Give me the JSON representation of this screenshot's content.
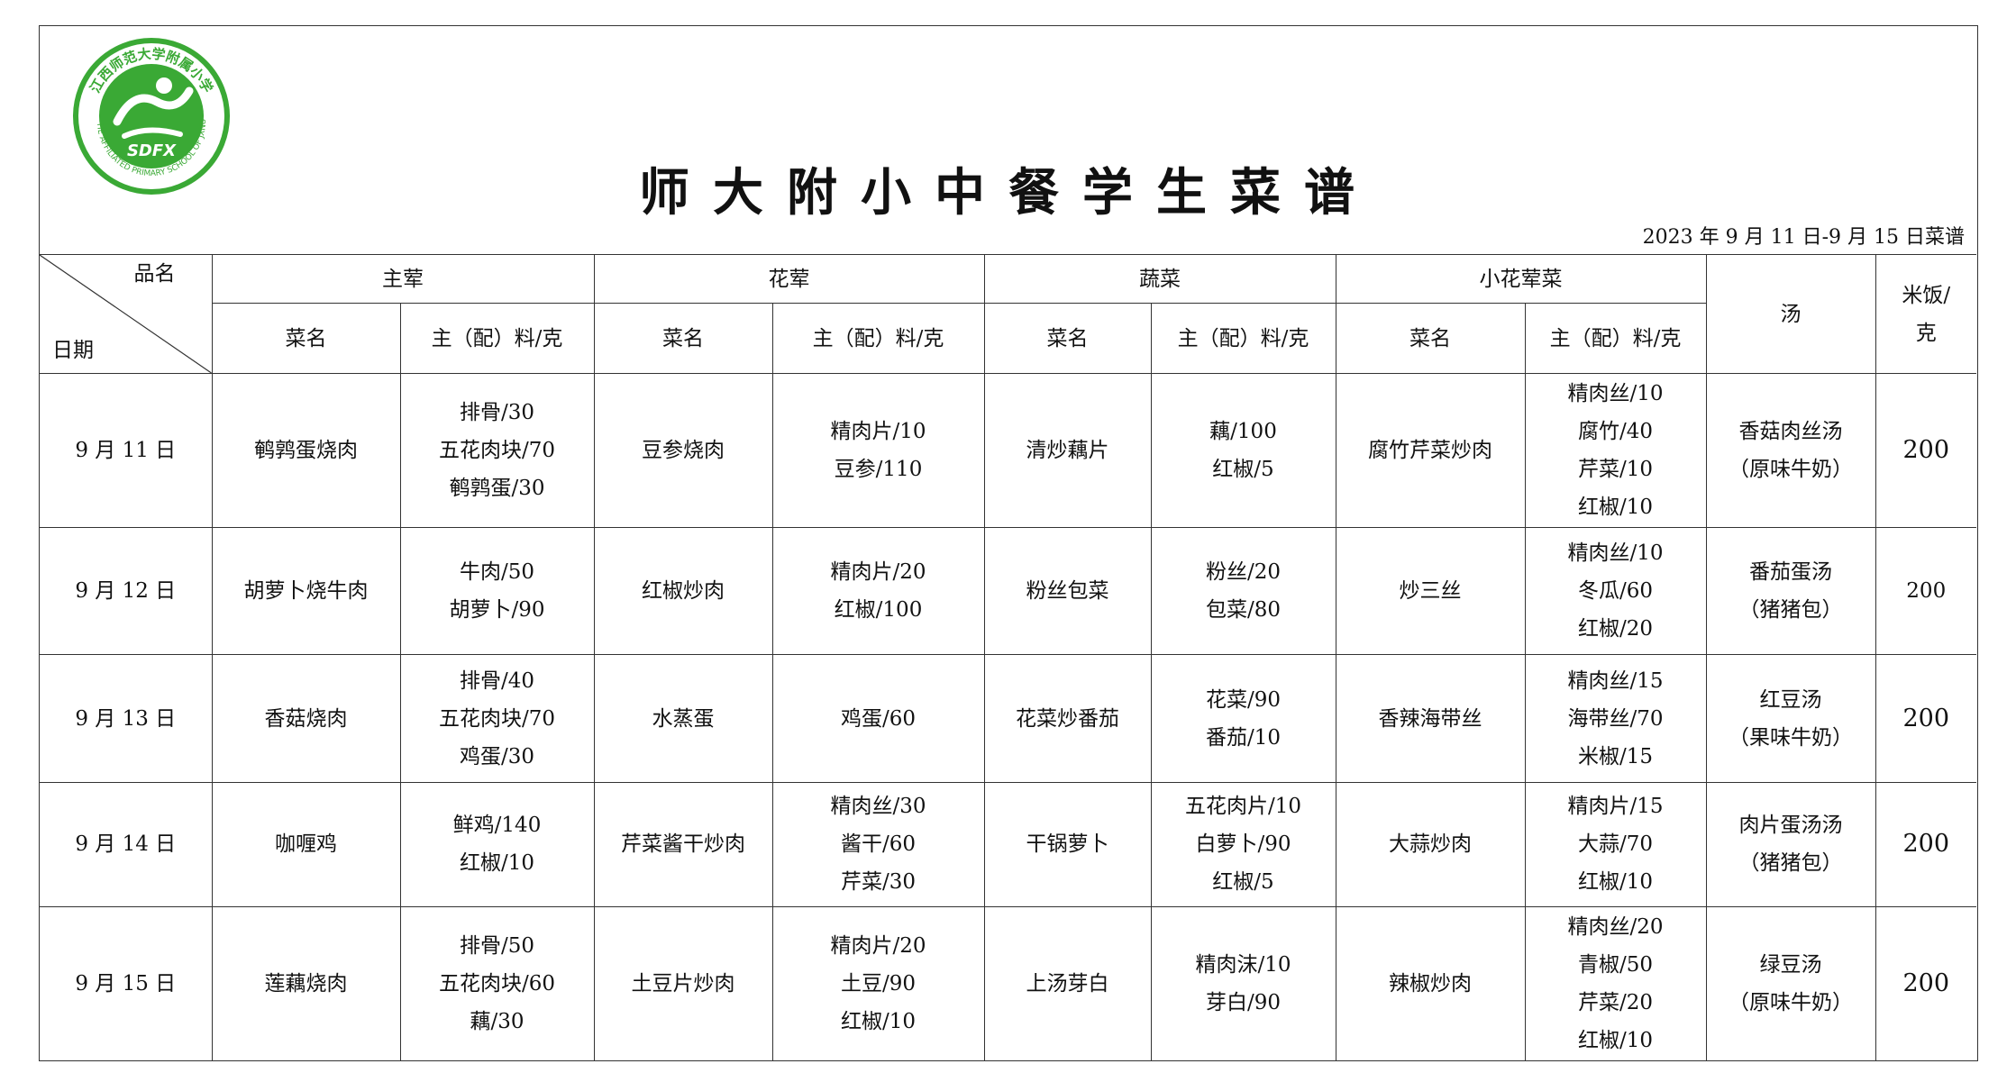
{
  "header": {
    "school_name": "江西师范大学附属小学",
    "school_name_en": "THE AFFILIATED PRIMARY SCHOOL OF JXNU",
    "logo_text": "SDFX",
    "title": "师大附小中餐学生菜谱",
    "date_range": "2023 年 9 月 11 日-9 月 15 日菜谱"
  },
  "colors": {
    "logo_green": "#3aa935",
    "border": "#333333"
  },
  "table": {
    "corner_top": "品名",
    "corner_bottom": "日期",
    "groups": [
      "主荤",
      "花荤",
      "蔬菜",
      "小花荤菜"
    ],
    "soup_header": "汤",
    "rice_header": "米饭/克",
    "sub_dish": "菜名",
    "sub_ingredients": "主（配）料/克",
    "rows": [
      {
        "date": "9 月 11 日",
        "main": {
          "dish": "鹌鹑蛋烧肉",
          "ing": [
            "排骨/30",
            "五花肉块/70",
            "鹌鹑蛋/30"
          ]
        },
        "meat": {
          "dish": "豆参烧肉",
          "ing": [
            "精肉片/10",
            "豆参/110"
          ]
        },
        "veg": {
          "dish": "清炒藕片",
          "ing": [
            "藕/100",
            "红椒/5"
          ]
        },
        "small": {
          "dish": "腐竹芹菜炒肉",
          "ing": [
            "精肉丝/10",
            "腐竹/40",
            "芹菜/10",
            "红椒/10"
          ]
        },
        "soup": [
          "香菇肉丝汤",
          "（原味牛奶）"
        ],
        "rice": "200"
      },
      {
        "date": "9 月 12 日",
        "main": {
          "dish": "胡萝卜烧牛肉",
          "ing": [
            "牛肉/50",
            "胡萝卜/90"
          ]
        },
        "meat": {
          "dish": "红椒炒肉",
          "ing": [
            "精肉片/20",
            "红椒/100"
          ]
        },
        "veg": {
          "dish": "粉丝包菜",
          "ing": [
            "粉丝/20",
            "包菜/80"
          ]
        },
        "small": {
          "dish": "炒三丝",
          "ing": [
            "精肉丝/10",
            "冬瓜/60",
            "红椒/20"
          ]
        },
        "soup": [
          "番茄蛋汤",
          "（猪猪包）"
        ],
        "rice": "200"
      },
      {
        "date": "9 月 13 日",
        "main": {
          "dish": "香菇烧肉",
          "ing": [
            "排骨/40",
            "五花肉块/70",
            "鸡蛋/30"
          ]
        },
        "meat": {
          "dish": "水蒸蛋",
          "ing": [
            "鸡蛋/60"
          ]
        },
        "veg": {
          "dish": "花菜炒番茄",
          "ing": [
            "花菜/90",
            "番茄/10"
          ]
        },
        "small": {
          "dish": "香辣海带丝",
          "ing": [
            "精肉丝/15",
            "海带丝/70",
            "米椒/15"
          ]
        },
        "soup": [
          "红豆汤",
          "（果味牛奶）"
        ],
        "rice": "200"
      },
      {
        "date": "9 月 14 日",
        "main": {
          "dish": "咖喱鸡",
          "ing": [
            "鲜鸡/140",
            "红椒/10"
          ]
        },
        "meat": {
          "dish": "芹菜酱干炒肉",
          "ing": [
            "精肉丝/30",
            "酱干/60",
            "芹菜/30"
          ]
        },
        "veg": {
          "dish": "干锅萝卜",
          "ing": [
            "五花肉片/10",
            "白萝卜/90",
            "红椒/5"
          ]
        },
        "small": {
          "dish": "大蒜炒肉",
          "ing": [
            "精肉片/15",
            "大蒜/70",
            "红椒/10"
          ]
        },
        "soup": [
          "肉片蛋汤汤",
          "（猪猪包）"
        ],
        "rice": "200"
      },
      {
        "date": "9 月 15 日",
        "main": {
          "dish": "莲藕烧肉",
          "ing": [
            "排骨/50",
            "五花肉块/60",
            "藕/30"
          ]
        },
        "meat": {
          "dish": "土豆片炒肉",
          "ing": [
            "精肉片/20",
            "土豆/90",
            "红椒/10"
          ]
        },
        "veg": {
          "dish": "上汤芽白",
          "ing": [
            "精肉沫/10",
            "芽白/90"
          ]
        },
        "small": {
          "dish": "辣椒炒肉",
          "ing": [
            "精肉丝/20",
            "青椒/50",
            "芹菜/20",
            "红椒/10"
          ]
        },
        "soup": [
          "绿豆汤",
          "（原味牛奶）"
        ],
        "rice": "200"
      }
    ]
  }
}
